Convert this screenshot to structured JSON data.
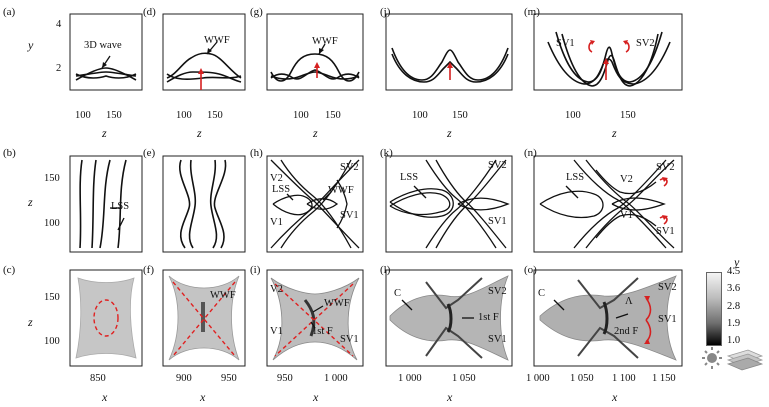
{
  "panel_labels": [
    "(a)",
    "(b)",
    "(c)",
    "(d)",
    "(e)",
    "(f)",
    "(g)",
    "(h)",
    "(i)",
    "(j)",
    "(k)",
    "(l)",
    "(m)",
    "(n)",
    "(o)"
  ],
  "axes": {
    "y_label": "y",
    "z_label": "z",
    "x_label": "x",
    "row1_y_ticks": [
      "4",
      "2"
    ],
    "row1_z_ticks": [
      "100",
      "150"
    ],
    "row23_z_ticks": [
      "150",
      "100"
    ],
    "x_ticks_c": [
      "850"
    ],
    "x_ticks_f": [
      "900",
      "950"
    ],
    "x_ticks_i": [
      "950",
      "1 000"
    ],
    "x_ticks_l": [
      "1 000",
      "1 050"
    ],
    "x_ticks_o": [
      "1 000",
      "1 050",
      "1 100",
      "1 150"
    ]
  },
  "annotations": {
    "a": "3D wave",
    "d": "WWF",
    "g": "WWF",
    "m_left": "SV1",
    "m_right": "SV2",
    "b": "LSS",
    "h_v2": "V2",
    "h_lss": "LSS",
    "h_wwf": "WWF",
    "h_sv2": "SV2",
    "h_sv1": "SV1",
    "h_v1": "V1",
    "k_lss": "LSS",
    "k_sv2": "SV2",
    "k_sv1": "SV1",
    "n_lss": "LSS",
    "n_v2": "V2",
    "n_v1": "V1",
    "n_sv2": "SV2",
    "n_sv1": "SV1",
    "f_wwf": "WWF",
    "i_v2": "V2",
    "i_wwf": "WWF",
    "i_v1": "V1",
    "i_1stf": "1st F",
    "i_sv1": "SV1",
    "l_c": "C",
    "l_sv2": "SV2",
    "l_1stf": "1st F",
    "l_sv1": "SV1",
    "o_c": "C",
    "o_lambda": "Λ",
    "o_sv2": "SV2",
    "o_sv1": "SV1",
    "o_2ndf": "2nd F"
  },
  "colorbar": {
    "title": "y",
    "ticks": [
      "4.5",
      "3.6",
      "2.8",
      "1.9",
      "1.0"
    ],
    "low_color": "#000000",
    "high_color": "#f4f4f4"
  },
  "colors": {
    "arrow": "#d62020",
    "curve": "#111111"
  }
}
